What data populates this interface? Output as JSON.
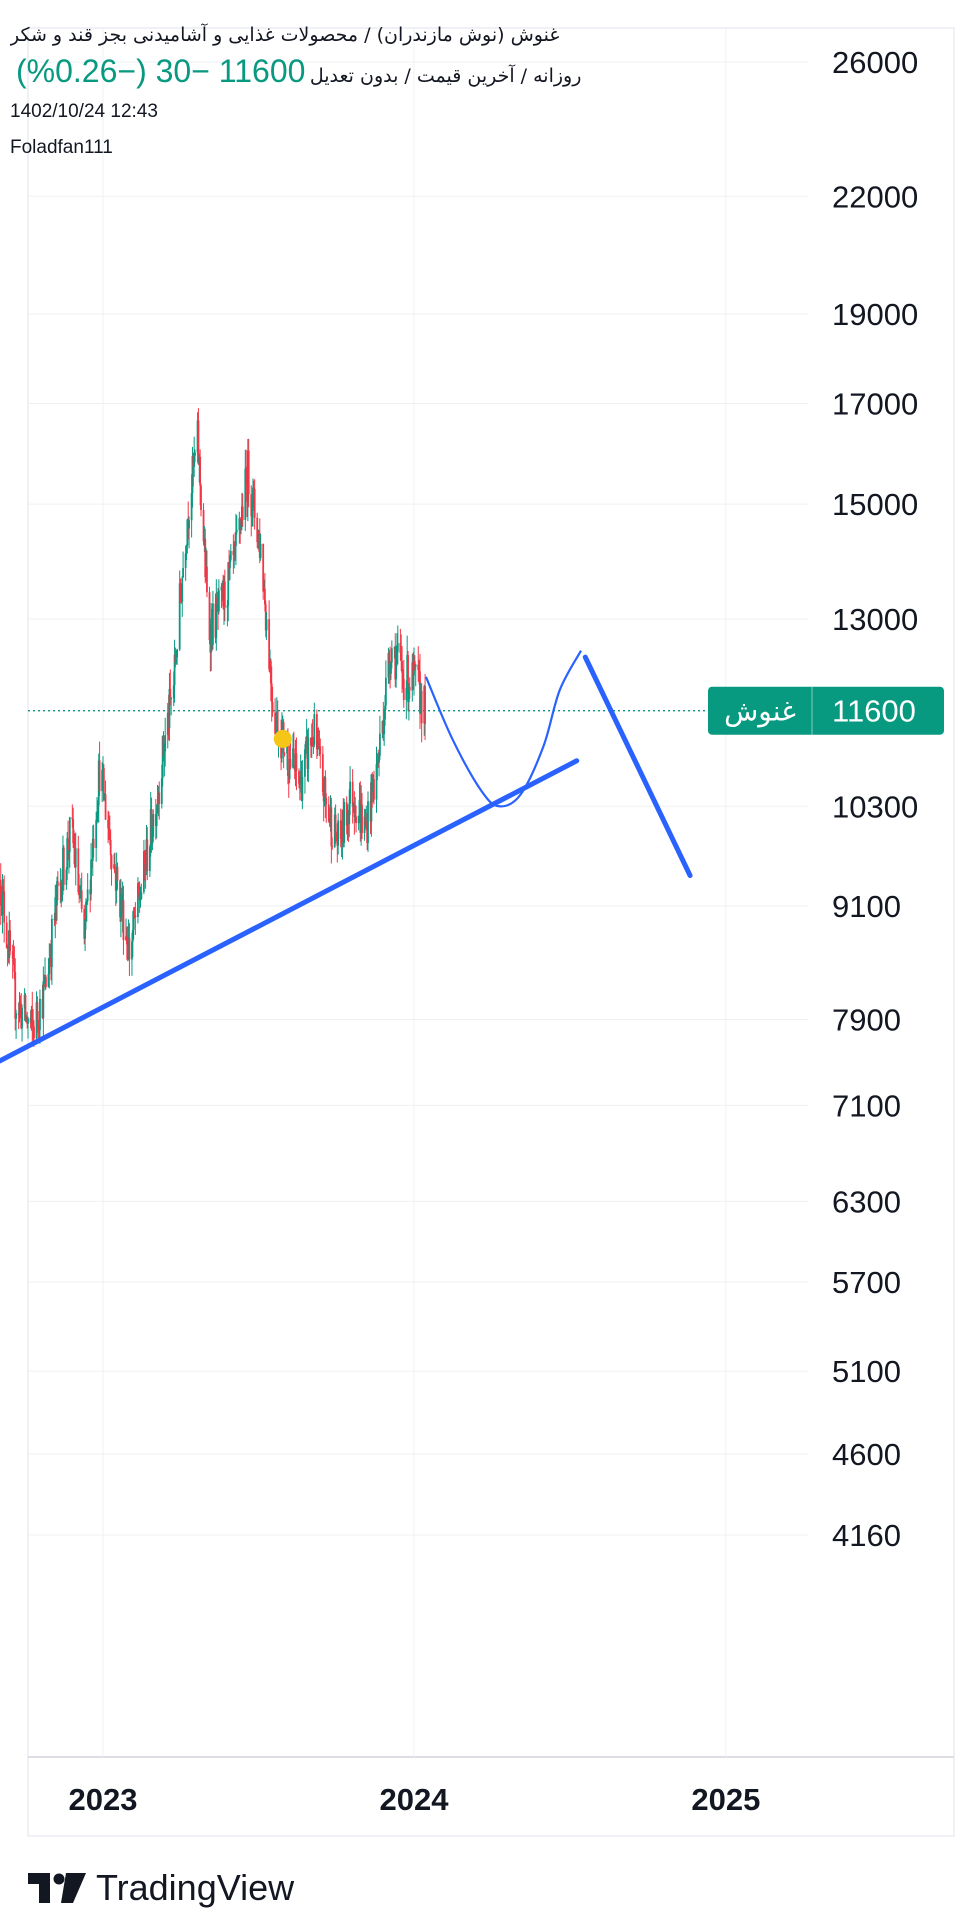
{
  "header": {
    "title": "غنوش (نوش مازندران) / محصولات غذایی و آشامیدنی بجز قند و شکر",
    "subtitle": "روزانه / آخرین قیمت / بدون تعدیل",
    "price_change": "11600  −30 (−0.26%)",
    "datetime": "1402/10/24 12:43",
    "author": "Foladfan111"
  },
  "last_price_tag": {
    "symbol": "غنوش",
    "value": "11600"
  },
  "footer": {
    "brand": "TradingView"
  },
  "colors": {
    "up": "#089981",
    "down": "#f23645",
    "drawing": "#2962ff",
    "marker": "#f5c518",
    "grid": "#eef0f3",
    "text": "#131722",
    "tag": "#089981"
  },
  "icons": {
    "logo": "tradingview-logo-icon"
  },
  "chart_data": {
    "type": "candlestick",
    "y_scale": "log",
    "y_ticks": [
      26000,
      22000,
      19000,
      17000,
      15000,
      13000,
      10300,
      9100,
      7900,
      7100,
      6300,
      5700,
      5100,
      4600,
      4160
    ],
    "y_tick_labels": [
      "26000",
      "22000",
      "19000",
      "17000",
      "15000",
      "13000",
      "10300",
      "9100",
      "7900",
      "7100",
      "6300",
      "5700",
      "5100",
      "4600",
      "4160"
    ],
    "x_ticks": [
      "2023-01-01",
      "2024-01-01",
      "2025-01-01"
    ],
    "x_tick_labels": [
      "2023",
      "2024",
      "2025"
    ],
    "x_range": [
      "2022-09-01",
      "2025-01-20"
    ],
    "last_price": 11600,
    "close_path": [
      [
        "2022-09-02",
        9400
      ],
      [
        "2022-09-20",
        8100
      ],
      [
        "2022-10-10",
        7800
      ],
      [
        "2022-10-25",
        8200
      ],
      [
        "2022-11-10",
        9300
      ],
      [
        "2022-11-25",
        10000
      ],
      [
        "2022-12-10",
        8700
      ],
      [
        "2022-12-28",
        10800
      ],
      [
        "2023-01-15",
        9500
      ],
      [
        "2023-02-01",
        8600
      ],
      [
        "2023-02-15",
        9300
      ],
      [
        "2023-03-05",
        10400
      ],
      [
        "2023-03-25",
        12000
      ],
      [
        "2023-04-10",
        14800
      ],
      [
        "2023-04-22",
        16200
      ],
      [
        "2023-05-05",
        12800
      ],
      [
        "2023-05-20",
        13200
      ],
      [
        "2023-06-05",
        14000
      ],
      [
        "2023-06-20",
        15600
      ],
      [
        "2023-07-05",
        14200
      ],
      [
        "2023-07-20",
        11600
      ],
      [
        "2023-08-05",
        11000
      ],
      [
        "2023-08-20",
        10600
      ],
      [
        "2023-09-05",
        11300
      ],
      [
        "2023-09-20",
        10300
      ],
      [
        "2023-10-05",
        9800
      ],
      [
        "2023-10-20",
        10500
      ],
      [
        "2023-11-05",
        10000
      ],
      [
        "2023-11-20",
        10900
      ],
      [
        "2023-12-05",
        12600
      ],
      [
        "2023-12-20",
        12100
      ],
      [
        "2024-01-04",
        12000
      ],
      [
        "2024-01-14",
        11600
      ]
    ],
    "drawings": {
      "trend_line": {
        "start": [
          "2022-09-01",
          7500
        ],
        "end": [
          "2024-07-10",
          10900
        ]
      },
      "curve_path": [
        [
          "2024-01-15",
          12100
        ],
        [
          "2024-02-15",
          11200
        ],
        [
          "2024-03-20",
          10500
        ],
        [
          "2024-04-10",
          10300
        ],
        [
          "2024-05-05",
          10450
        ],
        [
          "2024-06-01",
          11100
        ],
        [
          "2024-06-20",
          11900
        ],
        [
          "2024-07-15",
          12500
        ]
      ],
      "down_line": {
        "start": [
          "2024-07-20",
          12400
        ],
        "end": [
          "2024-11-20",
          9450
        ]
      },
      "marker": {
        "date": "2023-07-31",
        "value": 11200
      }
    }
  }
}
